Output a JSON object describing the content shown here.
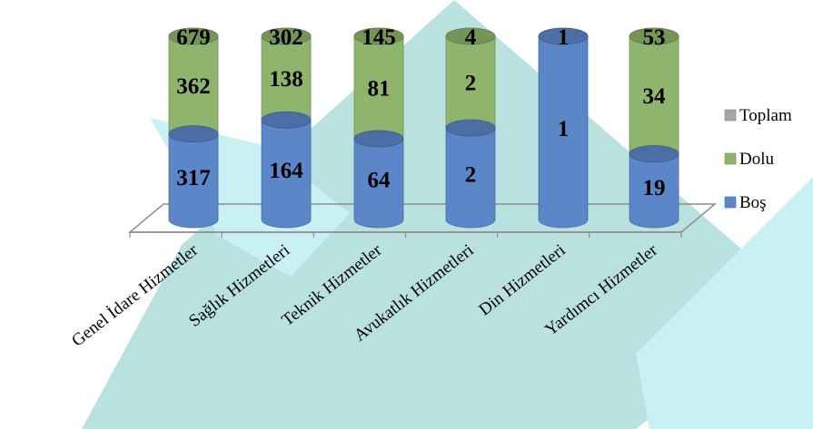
{
  "colors": {
    "toplam": "#a6a6a6",
    "dolu": "#8fb46b",
    "bos": "#5b86c8",
    "decor_a": "#c9f1f4",
    "decor_b": "#b8e1e0"
  },
  "chart_data": {
    "type": "bar",
    "style": "stacked 3d cylinder",
    "categories": [
      "Genel İdare Hizmetler",
      "Sağlık Hizmetleri",
      "Teknik Hizmetler",
      "Avukatlık Hizmetleri",
      "Din Hizmetleri",
      "Yardımcı Hizmetler"
    ],
    "series": [
      {
        "name": "Boş",
        "values": [
          317,
          164,
          64,
          2,
          1,
          19
        ]
      },
      {
        "name": "Dolu",
        "values": [
          362,
          138,
          81,
          2,
          0,
          34
        ]
      },
      {
        "name": "Toplam",
        "values": [
          679,
          302,
          145,
          4,
          1,
          53
        ]
      }
    ],
    "data_labels": [
      {
        "Boş": "317",
        "Dolu": "362",
        "Toplam": "679"
      },
      {
        "Boş": "164",
        "Dolu": "138",
        "Toplam": "302"
      },
      {
        "Boş": "64",
        "Dolu": "81",
        "Toplam": "145"
      },
      {
        "Boş": "2",
        "Dolu": "2",
        "Toplam": "4"
      },
      {
        "Boş": "1",
        "Dolu": "",
        "Toplam": "1"
      },
      {
        "Boş": "19",
        "Dolu": "34",
        "Toplam": "53"
      }
    ],
    "legend": [
      "Toplam",
      "Dolu",
      "Boş"
    ],
    "legend_position": "right",
    "title": "",
    "xlabel": "",
    "ylabel": "",
    "grid": false
  }
}
